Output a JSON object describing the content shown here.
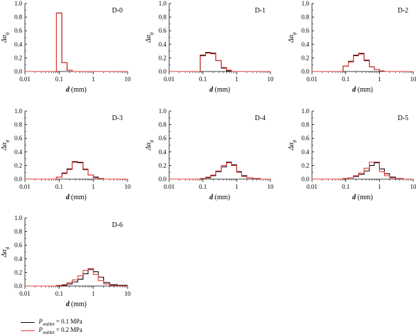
{
  "legend": [
    {
      "prefix": "P",
      "sub": "outlet",
      "suffix": " = 0.1 MPa",
      "color": "#000000"
    },
    {
      "prefix": "P",
      "sub": "outlet",
      "suffix": " = 0.2 MPa",
      "color": "#e53935"
    }
  ],
  "chart_data": [
    {
      "type": "line",
      "title": "D-0",
      "xscale": "log",
      "xlim": [
        0.01,
        10
      ],
      "ylim": [
        0,
        1.0
      ],
      "xticks": [
        "0.01",
        "0.1",
        "1",
        "10"
      ],
      "yticks": [
        "0.0",
        "0.2",
        "0.4",
        "0.6",
        "0.8",
        "1.0"
      ],
      "xlabel": "d (mm)",
      "ylabel": "Δα_g",
      "bin_edges": [
        0.01,
        0.0833,
        0.12,
        0.17,
        0.24,
        0.35,
        0.5,
        0.7,
        1.0,
        1.4,
        2.0,
        3.0,
        5.0,
        10.0
      ],
      "series": [
        {
          "name": "P_outlet = 0.1 MPa",
          "values": [
            0,
            0.86,
            0.13,
            0.02,
            0,
            0,
            0,
            0,
            0,
            0,
            0,
            0,
            0
          ]
        },
        {
          "name": "P_outlet = 0.2 MPa",
          "values": [
            0,
            0.86,
            0.13,
            0.02,
            0,
            0,
            0,
            0,
            0,
            0,
            0,
            0,
            0
          ]
        }
      ]
    },
    {
      "type": "line",
      "title": "D-1",
      "xscale": "log",
      "xlim": [
        0.01,
        10
      ],
      "ylim": [
        0,
        1.0
      ],
      "xticks": [
        "0.01",
        "0.1",
        "1",
        "10"
      ],
      "yticks": [
        "0.0",
        "0.2",
        "0.4",
        "0.6",
        "0.8",
        "1.0"
      ],
      "xlabel": "d (mm)",
      "ylabel": "Δα_g",
      "bin_edges": [
        0.01,
        0.0833,
        0.12,
        0.17,
        0.24,
        0.35,
        0.5,
        0.7,
        1.0,
        1.4,
        2.0,
        3.0,
        5.0,
        10.0
      ],
      "series": [
        {
          "name": "P_outlet = 0.1 MPa",
          "values": [
            0,
            0.24,
            0.28,
            0.27,
            0.16,
            0.05,
            0.01,
            0,
            0,
            0,
            0,
            0,
            0
          ]
        },
        {
          "name": "P_outlet = 0.2 MPa",
          "values": [
            0,
            0.23,
            0.27,
            0.26,
            0.16,
            0.06,
            0.02,
            0,
            0,
            0,
            0,
            0,
            0
          ]
        }
      ]
    },
    {
      "type": "line",
      "title": "D-2",
      "xscale": "log",
      "xlim": [
        0.01,
        10
      ],
      "ylim": [
        0,
        1.0
      ],
      "xticks": [
        "0.01",
        "0.1",
        "1",
        "10"
      ],
      "yticks": [
        "0.0",
        "0.2",
        "0.4",
        "0.6",
        "0.8",
        "1.0"
      ],
      "xlabel": "d (mm)",
      "ylabel": "Δα_g",
      "bin_edges": [
        0.01,
        0.0833,
        0.12,
        0.17,
        0.24,
        0.35,
        0.5,
        0.7,
        1.0,
        1.4,
        2.0,
        3.0,
        5.0,
        10.0
      ],
      "series": [
        {
          "name": "P_outlet = 0.1 MPa",
          "values": [
            0,
            0.08,
            0.15,
            0.24,
            0.26,
            0.16,
            0.07,
            0.03,
            0.01,
            0,
            0,
            0,
            0
          ]
        },
        {
          "name": "P_outlet = 0.2 MPa",
          "values": [
            0,
            0.08,
            0.14,
            0.23,
            0.27,
            0.17,
            0.07,
            0.03,
            0.01,
            0,
            0,
            0,
            0
          ]
        }
      ]
    },
    {
      "type": "line",
      "title": "D-3",
      "xscale": "log",
      "xlim": [
        0.01,
        10
      ],
      "ylim": [
        0,
        1.0
      ],
      "xticks": [
        "0.01",
        "0.1",
        "1",
        "10"
      ],
      "yticks": [
        "0.0",
        "0.2",
        "0.4",
        "0.6",
        "0.8",
        "1.0"
      ],
      "xlabel": "d (mm)",
      "ylabel": "Δα_g",
      "bin_edges": [
        0.01,
        0.0833,
        0.12,
        0.17,
        0.24,
        0.35,
        0.5,
        0.7,
        1.0,
        1.4,
        2.0,
        3.0,
        5.0,
        10.0
      ],
      "series": [
        {
          "name": "P_outlet = 0.1 MPa",
          "values": [
            0,
            0.03,
            0.09,
            0.15,
            0.25,
            0.24,
            0.14,
            0.06,
            0.03,
            0.01,
            0,
            0,
            0
          ]
        },
        {
          "name": "P_outlet = 0.2 MPa",
          "values": [
            0,
            0.03,
            0.08,
            0.14,
            0.26,
            0.25,
            0.15,
            0.06,
            0.02,
            0.01,
            0,
            0,
            0
          ]
        }
      ]
    },
    {
      "type": "line",
      "title": "D-4",
      "xscale": "log",
      "xlim": [
        0.01,
        10
      ],
      "ylim": [
        0,
        1.0
      ],
      "xticks": [
        "0.01",
        "0.1",
        "1",
        "10"
      ],
      "yticks": [
        "0.0",
        "0.2",
        "0.4",
        "0.6",
        "0.8",
        "1.0"
      ],
      "xlabel": "d (mm)",
      "ylabel": "Δα_g",
      "bin_edges": [
        0.01,
        0.0833,
        0.12,
        0.17,
        0.24,
        0.35,
        0.5,
        0.7,
        1.0,
        1.4,
        2.0,
        3.0,
        5.0,
        10.0
      ],
      "series": [
        {
          "name": "P_outlet = 0.1 MPa",
          "values": [
            0,
            0.01,
            0.02,
            0.05,
            0.11,
            0.18,
            0.25,
            0.21,
            0.11,
            0.05,
            0.02,
            0.01,
            0
          ]
        },
        {
          "name": "P_outlet = 0.2 MPa",
          "values": [
            0,
            0.01,
            0.03,
            0.06,
            0.12,
            0.2,
            0.24,
            0.2,
            0.1,
            0.04,
            0.02,
            0.01,
            0
          ]
        }
      ]
    },
    {
      "type": "line",
      "title": "D-5",
      "xscale": "log",
      "xlim": [
        0.01,
        10
      ],
      "ylim": [
        0,
        1.0
      ],
      "xticks": [
        "0.01",
        "0.1",
        "1",
        "10"
      ],
      "yticks": [
        "0.0",
        "0.2",
        "0.4",
        "0.6",
        "0.8",
        "1.0"
      ],
      "xlabel": "d (mm)",
      "ylabel": "Δα_g",
      "bin_edges": [
        0.01,
        0.0833,
        0.12,
        0.17,
        0.24,
        0.35,
        0.5,
        0.7,
        1.0,
        1.4,
        2.0,
        3.0,
        5.0,
        10.0
      ],
      "series": [
        {
          "name": "P_outlet = 0.1 MPa",
          "values": [
            0,
            0.01,
            0.02,
            0.04,
            0.07,
            0.12,
            0.2,
            0.24,
            0.15,
            0.08,
            0.03,
            0.01,
            0
          ]
        },
        {
          "name": "P_outlet = 0.2 MPa",
          "values": [
            0,
            0.01,
            0.02,
            0.05,
            0.09,
            0.16,
            0.25,
            0.25,
            0.11,
            0.05,
            0.02,
            0.01,
            0
          ]
        }
      ]
    },
    {
      "type": "line",
      "title": "D-6",
      "xscale": "log",
      "xlim": [
        0.01,
        10
      ],
      "ylim": [
        0,
        1.0
      ],
      "xticks": [
        "0.01",
        "0.1",
        "1",
        "10"
      ],
      "yticks": [
        "0.0",
        "0.2",
        "0.4",
        "0.6",
        "0.8",
        "1.0"
      ],
      "xlabel": "d (mm)",
      "ylabel": "Δα_g",
      "bin_edges": [
        0.01,
        0.0833,
        0.12,
        0.17,
        0.24,
        0.35,
        0.5,
        0.7,
        1.0,
        1.4,
        2.0,
        3.0,
        5.0,
        10.0
      ],
      "series": [
        {
          "name": "P_outlet = 0.1 MPa",
          "values": [
            0,
            0,
            0.01,
            0.03,
            0.06,
            0.1,
            0.18,
            0.24,
            0.21,
            0.13,
            0.05,
            0.02,
            0.01
          ]
        },
        {
          "name": "P_outlet = 0.2 MPa",
          "values": [
            0,
            0.01,
            0.02,
            0.05,
            0.09,
            0.15,
            0.23,
            0.26,
            0.17,
            0.08,
            0.03,
            0.01,
            0
          ]
        }
      ]
    }
  ]
}
